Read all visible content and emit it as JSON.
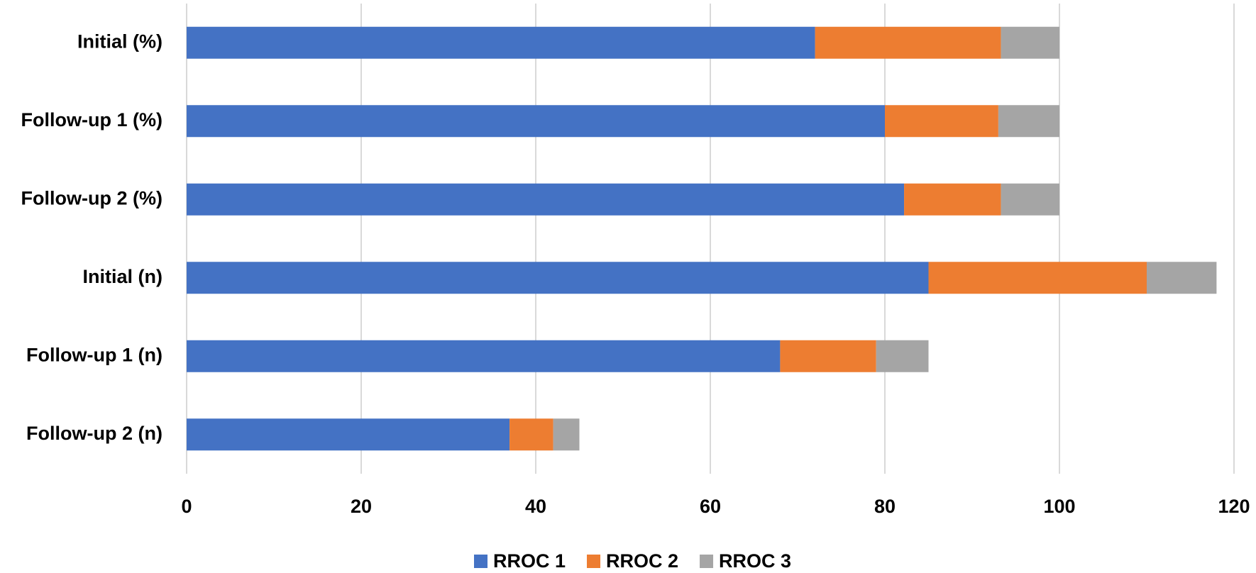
{
  "chart_data": {
    "type": "stacked-bar-horizontal",
    "categories": [
      "Initial (%)",
      "Follow-up 1 (%)",
      "Follow-up 2 (%)",
      "Initial (n)",
      "Follow-up 1 (n)",
      "Follow-up 2 (n)"
    ],
    "series": [
      {
        "name": "RROC 1",
        "color": "#4472c4",
        "values": [
          72,
          80,
          82.2,
          85,
          68,
          37
        ]
      },
      {
        "name": "RROC 2",
        "color": "#ed7d31",
        "values": [
          21.3,
          13,
          11.1,
          25,
          11,
          5
        ]
      },
      {
        "name": "RROC 3",
        "color": "#a5a5a5",
        "values": [
          6.7,
          7,
          6.7,
          8,
          6,
          3
        ]
      }
    ],
    "xlim": [
      0,
      120
    ],
    "xticks": [
      0,
      20,
      40,
      60,
      80,
      100,
      120
    ],
    "grid": true,
    "legend": "bottom"
  }
}
